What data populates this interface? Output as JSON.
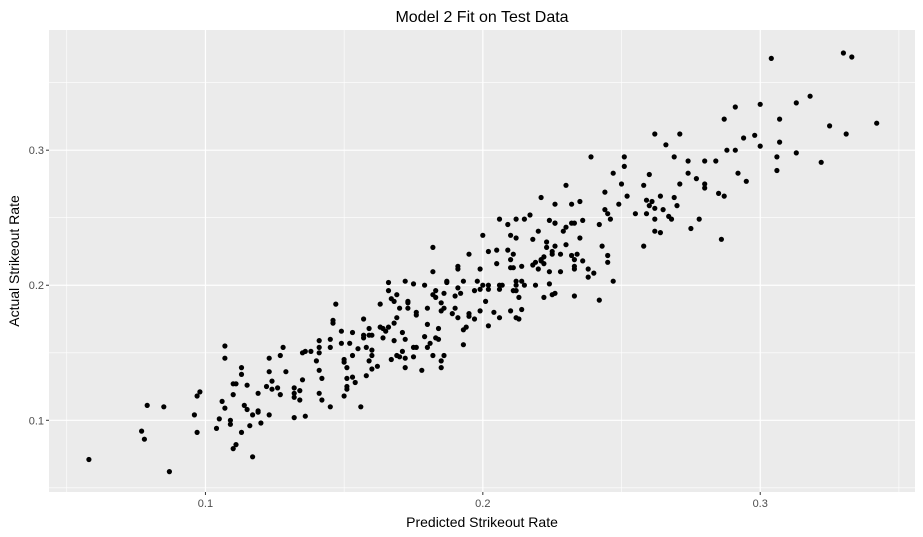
{
  "chart_data": {
    "type": "scatter",
    "title": "Model 2 Fit on Test Data",
    "xlabel": "Predicted Strikeout Rate",
    "ylabel": "Actual Strikeout Rate",
    "xlim": [
      0.0436,
      0.3558
    ],
    "ylim": [
      0.0469,
      0.389
    ],
    "xticks": [
      0.1,
      0.2,
      0.3
    ],
    "xtick_labels": [
      "0.1",
      "0.2",
      "0.3"
    ],
    "yticks": [
      0.1,
      0.2,
      0.3
    ],
    "ytick_labels": [
      "0.1",
      "0.2",
      "0.3"
    ],
    "xminor": [
      0.05,
      0.15,
      0.25,
      0.35
    ],
    "yminor": [
      0.05,
      0.15,
      0.25,
      0.35
    ],
    "grid": true,
    "colors": {
      "panel": "#EBEBEB",
      "grid": "#FFFFFF",
      "point": "#000000"
    },
    "points": [
      [
        0.058,
        0.071
      ],
      [
        0.077,
        0.092
      ],
      [
        0.078,
        0.086
      ],
      [
        0.079,
        0.111
      ],
      [
        0.085,
        0.11
      ],
      [
        0.087,
        0.062
      ],
      [
        0.096,
        0.104
      ],
      [
        0.097,
        0.118
      ],
      [
        0.098,
        0.121
      ],
      [
        0.097,
        0.091
      ],
      [
        0.104,
        0.094
      ],
      [
        0.105,
        0.101
      ],
      [
        0.106,
        0.114
      ],
      [
        0.107,
        0.109
      ],
      [
        0.107,
        0.155
      ],
      [
        0.107,
        0.146
      ],
      [
        0.109,
        0.1
      ],
      [
        0.109,
        0.097
      ],
      [
        0.11,
        0.079
      ],
      [
        0.111,
        0.082
      ],
      [
        0.11,
        0.119
      ],
      [
        0.11,
        0.127
      ],
      [
        0.111,
        0.127
      ],
      [
        0.113,
        0.139
      ],
      [
        0.113,
        0.134
      ],
      [
        0.113,
        0.091
      ],
      [
        0.114,
        0.111
      ],
      [
        0.115,
        0.108
      ],
      [
        0.115,
        0.126
      ],
      [
        0.116,
        0.096
      ],
      [
        0.117,
        0.104
      ],
      [
        0.117,
        0.073
      ],
      [
        0.119,
        0.12
      ],
      [
        0.119,
        0.107
      ],
      [
        0.119,
        0.106
      ],
      [
        0.12,
        0.098
      ],
      [
        0.122,
        0.125
      ],
      [
        0.123,
        0.146
      ],
      [
        0.123,
        0.136
      ],
      [
        0.123,
        0.104
      ],
      [
        0.124,
        0.129
      ],
      [
        0.124,
        0.123
      ],
      [
        0.126,
        0.124
      ],
      [
        0.127,
        0.148
      ],
      [
        0.128,
        0.154
      ],
      [
        0.127,
        0.119
      ],
      [
        0.129,
        0.136
      ],
      [
        0.132,
        0.124
      ],
      [
        0.132,
        0.117
      ],
      [
        0.132,
        0.12
      ],
      [
        0.134,
        0.122
      ],
      [
        0.134,
        0.115
      ],
      [
        0.132,
        0.102
      ],
      [
        0.136,
        0.103
      ],
      [
        0.135,
        0.15
      ],
      [
        0.136,
        0.151
      ],
      [
        0.135,
        0.13
      ],
      [
        0.138,
        0.151
      ],
      [
        0.14,
        0.144
      ],
      [
        0.141,
        0.137
      ],
      [
        0.141,
        0.159
      ],
      [
        0.141,
        0.154
      ],
      [
        0.141,
        0.15
      ],
      [
        0.142,
        0.131
      ],
      [
        0.141,
        0.12
      ],
      [
        0.142,
        0.115
      ],
      [
        0.145,
        0.11
      ],
      [
        0.145,
        0.16
      ],
      [
        0.145,
        0.154
      ],
      [
        0.146,
        0.172
      ],
      [
        0.146,
        0.174
      ],
      [
        0.147,
        0.186
      ],
      [
        0.149,
        0.166
      ],
      [
        0.149,
        0.157
      ],
      [
        0.15,
        0.145
      ],
      [
        0.15,
        0.143
      ],
      [
        0.151,
        0.139
      ],
      [
        0.151,
        0.131
      ],
      [
        0.153,
        0.132
      ],
      [
        0.151,
        0.125
      ],
      [
        0.151,
        0.123
      ],
      [
        0.15,
        0.118
      ],
      [
        0.152,
        0.157
      ],
      [
        0.153,
        0.165
      ],
      [
        0.153,
        0.148
      ],
      [
        0.154,
        0.128
      ],
      [
        0.155,
        0.153
      ],
      [
        0.156,
        0.11
      ],
      [
        0.157,
        0.175
      ],
      [
        0.157,
        0.163
      ],
      [
        0.157,
        0.161
      ],
      [
        0.158,
        0.133
      ],
      [
        0.158,
        0.154
      ],
      [
        0.159,
        0.168
      ],
      [
        0.159,
        0.163
      ],
      [
        0.159,
        0.144
      ],
      [
        0.16,
        0.152
      ],
      [
        0.16,
        0.148
      ],
      [
        0.16,
        0.163
      ],
      [
        0.16,
        0.138
      ],
      [
        0.162,
        0.14
      ],
      [
        0.163,
        0.169
      ],
      [
        0.163,
        0.186
      ],
      [
        0.164,
        0.161
      ],
      [
        0.164,
        0.168
      ],
      [
        0.165,
        0.166
      ],
      [
        0.166,
        0.169
      ],
      [
        0.166,
        0.196
      ],
      [
        0.166,
        0.202
      ],
      [
        0.167,
        0.145
      ],
      [
        0.167,
        0.19
      ],
      [
        0.168,
        0.188
      ],
      [
        0.168,
        0.159
      ],
      [
        0.168,
        0.172
      ],
      [
        0.169,
        0.176
      ],
      [
        0.169,
        0.193
      ],
      [
        0.169,
        0.148
      ],
      [
        0.17,
        0.183
      ],
      [
        0.17,
        0.147
      ],
      [
        0.171,
        0.165
      ],
      [
        0.171,
        0.151
      ],
      [
        0.172,
        0.203
      ],
      [
        0.172,
        0.139
      ],
      [
        0.172,
        0.16
      ],
      [
        0.172,
        0.146
      ],
      [
        0.173,
        0.183
      ],
      [
        0.173,
        0.187
      ],
      [
        0.173,
        0.188
      ],
      [
        0.175,
        0.201
      ],
      [
        0.175,
        0.154
      ],
      [
        0.176,
        0.154
      ],
      [
        0.175,
        0.147
      ],
      [
        0.176,
        0.178
      ],
      [
        0.176,
        0.18
      ],
      [
        0.178,
        0.137
      ],
      [
        0.179,
        0.2
      ],
      [
        0.179,
        0.162
      ],
      [
        0.18,
        0.171
      ],
      [
        0.18,
        0.183
      ],
      [
        0.18,
        0.154
      ],
      [
        0.181,
        0.157
      ],
      [
        0.182,
        0.21
      ],
      [
        0.182,
        0.228
      ],
      [
        0.182,
        0.193
      ],
      [
        0.183,
        0.196
      ],
      [
        0.183,
        0.191
      ],
      [
        0.182,
        0.148
      ],
      [
        0.183,
        0.161
      ],
      [
        0.184,
        0.168
      ],
      [
        0.184,
        0.16
      ],
      [
        0.185,
        0.187
      ],
      [
        0.185,
        0.181
      ],
      [
        0.185,
        0.144
      ],
      [
        0.185,
        0.139
      ],
      [
        0.186,
        0.194
      ],
      [
        0.186,
        0.183
      ],
      [
        0.186,
        0.148
      ],
      [
        0.187,
        0.203
      ],
      [
        0.187,
        0.202
      ],
      [
        0.189,
        0.179
      ],
      [
        0.19,
        0.192
      ],
      [
        0.19,
        0.183
      ],
      [
        0.191,
        0.212
      ],
      [
        0.191,
        0.214
      ],
      [
        0.191,
        0.198
      ],
      [
        0.191,
        0.176
      ],
      [
        0.192,
        0.194
      ],
      [
        0.193,
        0.203
      ],
      [
        0.193,
        0.167
      ],
      [
        0.193,
        0.156
      ],
      [
        0.194,
        0.169
      ],
      [
        0.195,
        0.179
      ],
      [
        0.195,
        0.223
      ],
      [
        0.195,
        0.177
      ],
      [
        0.197,
        0.175
      ],
      [
        0.197,
        0.196
      ],
      [
        0.198,
        0.203
      ],
      [
        0.199,
        0.197
      ],
      [
        0.199,
        0.181
      ],
      [
        0.199,
        0.212
      ],
      [
        0.2,
        0.237
      ],
      [
        0.2,
        0.2
      ],
      [
        0.201,
        0.188
      ],
      [
        0.202,
        0.2
      ],
      [
        0.202,
        0.197
      ],
      [
        0.202,
        0.225
      ],
      [
        0.202,
        0.17
      ],
      [
        0.204,
        0.18
      ],
      [
        0.205,
        0.226
      ],
      [
        0.205,
        0.216
      ],
      [
        0.206,
        0.2
      ],
      [
        0.206,
        0.197
      ],
      [
        0.206,
        0.249
      ],
      [
        0.206,
        0.176
      ],
      [
        0.207,
        0.2
      ],
      [
        0.209,
        0.226
      ],
      [
        0.209,
        0.245
      ],
      [
        0.21,
        0.237
      ],
      [
        0.21,
        0.213
      ],
      [
        0.21,
        0.181
      ],
      [
        0.21,
        0.219
      ],
      [
        0.211,
        0.213
      ],
      [
        0.211,
        0.223
      ],
      [
        0.211,
        0.196
      ],
      [
        0.212,
        0.2
      ],
      [
        0.212,
        0.203
      ],
      [
        0.212,
        0.249
      ],
      [
        0.212,
        0.235
      ],
      [
        0.212,
        0.196
      ],
      [
        0.212,
        0.176
      ],
      [
        0.213,
        0.191
      ],
      [
        0.213,
        0.175
      ],
      [
        0.214,
        0.203
      ],
      [
        0.214,
        0.214
      ],
      [
        0.214,
        0.182
      ],
      [
        0.215,
        0.249
      ],
      [
        0.215,
        0.2
      ],
      [
        0.217,
        0.252
      ],
      [
        0.218,
        0.234
      ],
      [
        0.218,
        0.215
      ],
      [
        0.219,
        0.2
      ],
      [
        0.219,
        0.217
      ],
      [
        0.22,
        0.24
      ],
      [
        0.22,
        0.212
      ],
      [
        0.221,
        0.218
      ],
      [
        0.221,
        0.265
      ],
      [
        0.221,
        0.219
      ],
      [
        0.222,
        0.221
      ],
      [
        0.222,
        0.191
      ],
      [
        0.222,
        0.216
      ],
      [
        0.223,
        0.232
      ],
      [
        0.223,
        0.228
      ],
      [
        0.224,
        0.21
      ],
      [
        0.224,
        0.201
      ],
      [
        0.224,
        0.248
      ],
      [
        0.225,
        0.223
      ],
      [
        0.225,
        0.225
      ],
      [
        0.225,
        0.193
      ],
      [
        0.226,
        0.229
      ],
      [
        0.226,
        0.26
      ],
      [
        0.226,
        0.246
      ],
      [
        0.226,
        0.246
      ],
      [
        0.226,
        0.194
      ],
      [
        0.228,
        0.223
      ],
      [
        0.228,
        0.21
      ],
      [
        0.229,
        0.24
      ],
      [
        0.23,
        0.274
      ],
      [
        0.23,
        0.243
      ],
      [
        0.23,
        0.23
      ],
      [
        0.232,
        0.246
      ],
      [
        0.232,
        0.26
      ],
      [
        0.232,
        0.222
      ],
      [
        0.233,
        0.214
      ],
      [
        0.233,
        0.219
      ],
      [
        0.233,
        0.192
      ],
      [
        0.233,
        0.246
      ],
      [
        0.233,
        0.212
      ],
      [
        0.234,
        0.223
      ],
      [
        0.235,
        0.235
      ],
      [
        0.235,
        0.262
      ],
      [
        0.236,
        0.218
      ],
      [
        0.236,
        0.248
      ],
      [
        0.238,
        0.212
      ],
      [
        0.238,
        0.206
      ],
      [
        0.24,
        0.209
      ],
      [
        0.242,
        0.245
      ],
      [
        0.242,
        0.189
      ],
      [
        0.243,
        0.229
      ],
      [
        0.244,
        0.269
      ],
      [
        0.244,
        0.256
      ],
      [
        0.245,
        0.217
      ],
      [
        0.245,
        0.253
      ],
      [
        0.245,
        0.222
      ],
      [
        0.246,
        0.249
      ],
      [
        0.247,
        0.203
      ],
      [
        0.249,
        0.26
      ],
      [
        0.239,
        0.295
      ],
      [
        0.247,
        0.283
      ],
      [
        0.304,
        0.368
      ],
      [
        0.33,
        0.372
      ],
      [
        0.333,
        0.369
      ],
      [
        0.318,
        0.34
      ],
      [
        0.313,
        0.335
      ],
      [
        0.3,
        0.334
      ],
      [
        0.291,
        0.332
      ],
      [
        0.287,
        0.323
      ],
      [
        0.307,
        0.323
      ],
      [
        0.342,
        0.32
      ],
      [
        0.325,
        0.318
      ],
      [
        0.331,
        0.312
      ],
      [
        0.262,
        0.312
      ],
      [
        0.271,
        0.312
      ],
      [
        0.298,
        0.311
      ],
      [
        0.294,
        0.309
      ],
      [
        0.266,
        0.304
      ],
      [
        0.3,
        0.303
      ],
      [
        0.307,
        0.306
      ],
      [
        0.288,
        0.3
      ],
      [
        0.291,
        0.3
      ],
      [
        0.251,
        0.295
      ],
      [
        0.269,
        0.295
      ],
      [
        0.306,
        0.295
      ],
      [
        0.313,
        0.298
      ],
      [
        0.251,
        0.288
      ],
      [
        0.274,
        0.292
      ],
      [
        0.28,
        0.292
      ],
      [
        0.284,
        0.292
      ],
      [
        0.322,
        0.291
      ],
      [
        0.306,
        0.285
      ],
      [
        0.26,
        0.282
      ],
      [
        0.274,
        0.283
      ],
      [
        0.292,
        0.283
      ],
      [
        0.25,
        0.275
      ],
      [
        0.258,
        0.274
      ],
      [
        0.271,
        0.275
      ],
      [
        0.277,
        0.279
      ],
      [
        0.28,
        0.275
      ],
      [
        0.28,
        0.272
      ],
      [
        0.295,
        0.277
      ],
      [
        0.252,
        0.266
      ],
      [
        0.264,
        0.266
      ],
      [
        0.269,
        0.265
      ],
      [
        0.285,
        0.268
      ],
      [
        0.287,
        0.266
      ],
      [
        0.259,
        0.263
      ],
      [
        0.261,
        0.262
      ],
      [
        0.26,
        0.259
      ],
      [
        0.27,
        0.259
      ],
      [
        0.262,
        0.257
      ],
      [
        0.265,
        0.256
      ],
      [
        0.255,
        0.253
      ],
      [
        0.259,
        0.253
      ],
      [
        0.267,
        0.251
      ],
      [
        0.268,
        0.249
      ],
      [
        0.262,
        0.249
      ],
      [
        0.278,
        0.249
      ],
      [
        0.275,
        0.242
      ],
      [
        0.262,
        0.24
      ],
      [
        0.264,
        0.239
      ],
      [
        0.286,
        0.234
      ],
      [
        0.258,
        0.229
      ]
    ]
  }
}
